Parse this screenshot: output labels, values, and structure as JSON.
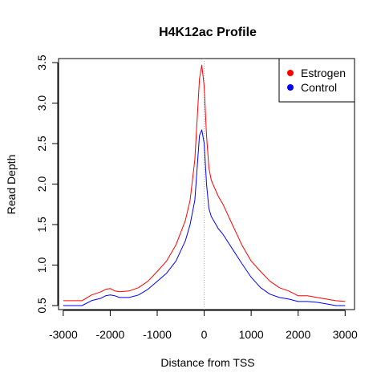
{
  "chart_data": {
    "type": "line",
    "title": "H4K12ac Profile",
    "xlabel": "Distance from TSS",
    "ylabel": "Read Depth",
    "xlim": [
      -3100,
      3200
    ],
    "ylim": [
      0.45,
      3.55
    ],
    "x_ticks": [
      -3000,
      -2000,
      -1000,
      0,
      1000,
      2000,
      3000
    ],
    "x_tick_labels": [
      "-3000",
      "-2000",
      "-1000",
      "0",
      "1000",
      "2000",
      "3000"
    ],
    "y_ticks": [
      0.5,
      1.0,
      1.5,
      2.0,
      2.5,
      3.0,
      3.5
    ],
    "y_tick_labels": [
      "0.5",
      "1.0",
      "1.5",
      "2.0",
      "2.5",
      "3.0",
      "3.5"
    ],
    "grid": false,
    "reference_line": {
      "x": 0,
      "style": "dotted",
      "color": "#aaaaaa"
    },
    "legend": {
      "position": "top-right"
    },
    "series": [
      {
        "name": "Estrogen",
        "color": "#ff0000",
        "x": [
          -3000,
          -2800,
          -2600,
          -2400,
          -2200,
          -2100,
          -2000,
          -1900,
          -1800,
          -1600,
          -1400,
          -1200,
          -1000,
          -800,
          -600,
          -400,
          -300,
          -200,
          -150,
          -100,
          -50,
          0,
          50,
          100,
          150,
          200,
          300,
          400,
          600,
          800,
          1000,
          1200,
          1400,
          1600,
          1800,
          2000,
          2200,
          2400,
          2600,
          2800,
          3000
        ],
        "y": [
          0.56,
          0.56,
          0.56,
          0.63,
          0.67,
          0.7,
          0.71,
          0.68,
          0.67,
          0.68,
          0.72,
          0.8,
          0.92,
          1.05,
          1.25,
          1.55,
          1.8,
          2.3,
          2.8,
          3.3,
          3.47,
          3.2,
          2.6,
          2.2,
          2.05,
          1.98,
          1.85,
          1.75,
          1.5,
          1.25,
          1.05,
          0.92,
          0.8,
          0.72,
          0.68,
          0.62,
          0.62,
          0.6,
          0.58,
          0.56,
          0.55
        ]
      },
      {
        "name": "Control",
        "color": "#0000ff",
        "x": [
          -3000,
          -2800,
          -2600,
          -2400,
          -2200,
          -2100,
          -2000,
          -1900,
          -1800,
          -1600,
          -1400,
          -1200,
          -1000,
          -800,
          -600,
          -400,
          -300,
          -200,
          -150,
          -100,
          -50,
          0,
          50,
          100,
          150,
          200,
          300,
          400,
          600,
          800,
          1000,
          1200,
          1400,
          1600,
          1800,
          2000,
          2200,
          2400,
          2600,
          2800,
          3000
        ],
        "y": [
          0.5,
          0.5,
          0.5,
          0.56,
          0.59,
          0.62,
          0.63,
          0.62,
          0.6,
          0.6,
          0.63,
          0.7,
          0.8,
          0.9,
          1.05,
          1.3,
          1.5,
          1.8,
          2.2,
          2.6,
          2.67,
          2.5,
          2.0,
          1.7,
          1.6,
          1.55,
          1.45,
          1.38,
          1.2,
          1.02,
          0.85,
          0.72,
          0.64,
          0.6,
          0.58,
          0.55,
          0.55,
          0.54,
          0.52,
          0.5,
          0.5
        ]
      }
    ]
  }
}
